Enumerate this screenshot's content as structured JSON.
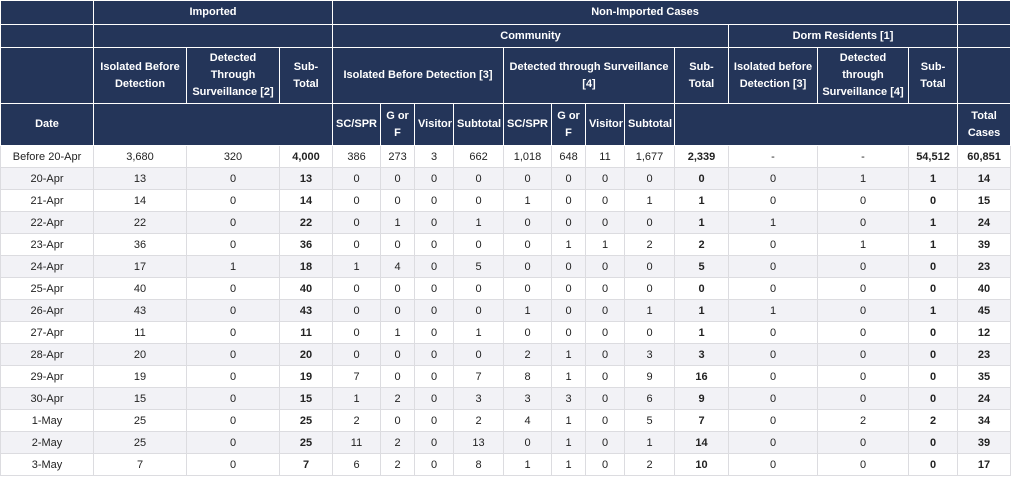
{
  "header": {
    "imported": "Imported",
    "non_imported": "Non-Imported Cases",
    "community": "Community",
    "dorm": "Dorm Residents [1]",
    "columns": [
      "Isolated Before Detection",
      "Detected Through Surveillance [2]",
      "Sub-Total",
      "Isolated Before Detection [3]",
      "Detected through Surveillance [4]",
      "Sub-Total",
      "Isolated before Detection [3]",
      "Detected through Surveillance [4]",
      "Sub-Total"
    ],
    "subcolumns": [
      "Date",
      "SC/SPR",
      "G or F",
      "Visitor",
      "Subtotal",
      "SC/SPR",
      "G or F",
      "Visitor",
      "Subtotal",
      "Total Cases"
    ]
  },
  "table": {
    "rows": [
      [
        "Before 20-Apr",
        "3,680",
        320,
        "4,000",
        386,
        273,
        3,
        662,
        "1,018",
        648,
        11,
        "1,677",
        "2,339",
        "-",
        "-",
        "54,512",
        "60,851"
      ],
      [
        "20-Apr",
        13,
        0,
        13,
        0,
        0,
        0,
        0,
        0,
        0,
        0,
        0,
        0,
        0,
        1,
        1,
        14
      ],
      [
        "21-Apr",
        14,
        0,
        14,
        0,
        0,
        0,
        0,
        1,
        0,
        0,
        1,
        1,
        0,
        0,
        0,
        15
      ],
      [
        "22-Apr",
        22,
        0,
        22,
        0,
        1,
        0,
        1,
        0,
        0,
        0,
        0,
        1,
        1,
        0,
        1,
        24
      ],
      [
        "23-Apr",
        36,
        0,
        36,
        0,
        0,
        0,
        0,
        0,
        1,
        1,
        2,
        2,
        0,
        1,
        1,
        39
      ],
      [
        "24-Apr",
        17,
        1,
        18,
        1,
        4,
        0,
        5,
        0,
        0,
        0,
        0,
        5,
        0,
        0,
        0,
        23
      ],
      [
        "25-Apr",
        40,
        0,
        40,
        0,
        0,
        0,
        0,
        0,
        0,
        0,
        0,
        0,
        0,
        0,
        0,
        40
      ],
      [
        "26-Apr",
        43,
        0,
        43,
        0,
        0,
        0,
        0,
        1,
        0,
        0,
        1,
        1,
        1,
        0,
        1,
        45
      ],
      [
        "27-Apr",
        11,
        0,
        11,
        0,
        1,
        0,
        1,
        0,
        0,
        0,
        0,
        1,
        0,
        0,
        0,
        12
      ],
      [
        "28-Apr",
        20,
        0,
        20,
        0,
        0,
        0,
        0,
        2,
        1,
        0,
        3,
        3,
        0,
        0,
        0,
        23
      ],
      [
        "29-Apr",
        19,
        0,
        19,
        7,
        0,
        0,
        7,
        8,
        1,
        0,
        9,
        16,
        0,
        0,
        0,
        35
      ],
      [
        "30-Apr",
        15,
        0,
        15,
        1,
        2,
        0,
        3,
        3,
        3,
        0,
        6,
        9,
        0,
        0,
        0,
        24
      ],
      [
        "1-May",
        25,
        0,
        25,
        2,
        0,
        0,
        2,
        4,
        1,
        0,
        5,
        7,
        0,
        2,
        2,
        34
      ],
      [
        "2-May",
        25,
        0,
        25,
        11,
        2,
        0,
        13,
        0,
        1,
        0,
        1,
        14,
        0,
        0,
        0,
        39
      ],
      [
        "3-May",
        7,
        0,
        7,
        6,
        2,
        0,
        8,
        1,
        1,
        0,
        2,
        10,
        0,
        0,
        0,
        17
      ]
    ]
  }
}
